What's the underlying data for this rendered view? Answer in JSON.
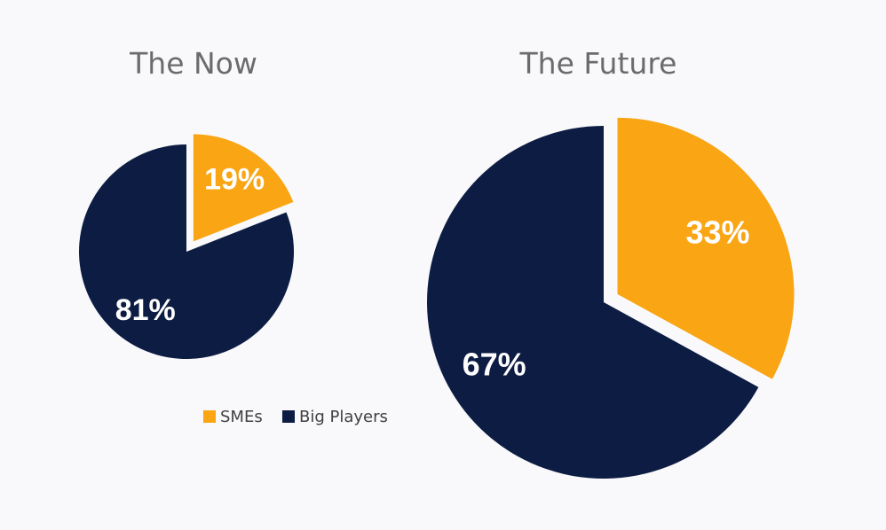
{
  "colors": {
    "smes": "#f9a514",
    "big_players": "#0c1c42",
    "background": "#f9f9fb"
  },
  "legend": [
    {
      "label": "SMEs",
      "color": "#f9a514"
    },
    {
      "label": "Big Players",
      "color": "#0c1c42"
    }
  ],
  "chart_data": [
    {
      "type": "pie",
      "title": "The Now",
      "slices": [
        {
          "label": "SMEs",
          "value": 19,
          "value_label": "19%",
          "color": "#f9a514",
          "exploded": true
        },
        {
          "label": "Big Players",
          "value": 81,
          "value_label": "81%",
          "color": "#0c1c42",
          "exploded": false
        }
      ]
    },
    {
      "type": "pie",
      "title": "The Future",
      "slices": [
        {
          "label": "SMEs",
          "value": 33,
          "value_label": "33%",
          "color": "#f9a514",
          "exploded": true
        },
        {
          "label": "Big Players",
          "value": 67,
          "value_label": "67%",
          "color": "#0c1c42",
          "exploded": false
        }
      ]
    }
  ]
}
